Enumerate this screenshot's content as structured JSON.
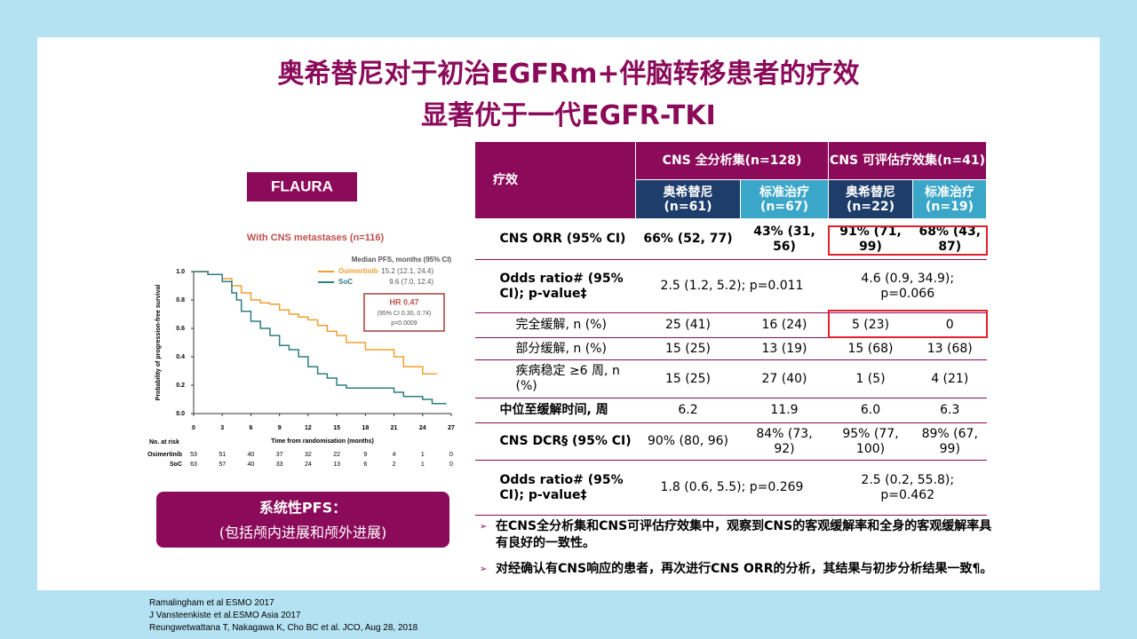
{
  "title": [
    "奥希替尼对于初治EGFRm+伴脑转移患者的疗效",
    "显著优于一代EGFR-TKI"
  ],
  "badge": "FLAURA",
  "chart_data": {
    "type": "line",
    "title": "With CNS metastases (n=116)",
    "legend_title": "Median PFS, months (95% CI)",
    "series": [
      {
        "name": "Osimertinib",
        "median": "15.2 (12.1, 24.4)",
        "color": "#f0a030",
        "x": [
          0,
          1.5,
          3,
          4,
          5,
          6,
          7,
          8,
          9,
          10,
          11,
          12,
          13,
          14,
          15,
          16,
          18,
          20,
          21,
          22,
          24,
          25.5
        ],
        "values": [
          1,
          0.98,
          0.95,
          0.9,
          0.85,
          0.8,
          0.78,
          0.77,
          0.73,
          0.7,
          0.68,
          0.66,
          0.62,
          0.58,
          0.55,
          0.5,
          0.45,
          0.45,
          0.4,
          0.33,
          0.28,
          0.28
        ]
      },
      {
        "name": "SoC",
        "median": "9.6 (7.0, 12.4)",
        "color": "#2e7d80",
        "x": [
          0,
          1.5,
          3,
          4,
          4.5,
          5,
          6,
          7,
          8,
          9,
          10,
          11,
          12,
          13,
          14,
          15,
          16,
          18,
          21,
          22,
          24,
          25,
          26.5
        ],
        "values": [
          1,
          0.98,
          0.93,
          0.85,
          0.8,
          0.72,
          0.65,
          0.6,
          0.55,
          0.48,
          0.45,
          0.4,
          0.33,
          0.28,
          0.25,
          0.2,
          0.18,
          0.18,
          0.15,
          0.12,
          0.1,
          0.07,
          0.07
        ]
      }
    ],
    "annotation": [
      "HR 0.47",
      "(95% CI 0.30, 0.74)",
      "p=0.0009"
    ],
    "xlabel": "Time from randomisation (months)",
    "ylabel": "Probability of progression-free survival",
    "xlim": [
      0,
      27
    ],
    "xticks": [
      0,
      3,
      6,
      9,
      12,
      15,
      18,
      21,
      24,
      27
    ],
    "ylim": [
      0,
      1
    ],
    "yticks": [
      {
        "value": 0,
        "label": "0.0"
      },
      {
        "value": 0.2,
        "label": "0.2"
      },
      {
        "value": 0.4,
        "label": "0.4"
      },
      {
        "value": 0.6,
        "label": "0.6"
      },
      {
        "value": 0.8,
        "label": "0.8"
      },
      {
        "value": 1,
        "label": "1.0"
      }
    ],
    "risk_title": "No. at risk",
    "risk": [
      {
        "name": "Osimertinib",
        "values": [
          53,
          51,
          40,
          37,
          32,
          22,
          9,
          4,
          1,
          0
        ]
      },
      {
        "name": "SoC",
        "values": [
          63,
          57,
          40,
          33,
          24,
          13,
          6,
          2,
          1,
          0
        ]
      }
    ]
  },
  "pfs_box": [
    "系统性PFS：",
    "(包括颅内进展和颅外进展)"
  ],
  "table": {
    "corner": "疗效",
    "groups": [
      "CNS 全分析集(n=128)",
      "CNS 可评估疗效集(n=41)"
    ],
    "arms": [
      "奥希替尼(n=61)",
      "标准治疗(n=67)",
      "奥希替尼(n=22)",
      "标准治疗(n=19)"
    ],
    "rows": [
      [
        "CNS ORR (95% CI)",
        "66% (52, 77)",
        "43% (31, 56)",
        "91% (71, 99)",
        "68% (43, 87)"
      ],
      [
        "Odds ratio# (95% CI); p-value‡",
        "2.5 (1.2, 5.2); p=0.011",
        "4.6 (0.9, 34.9); p=0.066"
      ],
      [
        "完全缓解, n (%)",
        "25 (41)",
        "16 (24)",
        "5 (23)",
        "0"
      ],
      [
        "部分缓解, n (%)",
        "15 (25)",
        "13 (19)",
        "15 (68)",
        "13 (68)"
      ],
      [
        "疾病稳定 ≥6 周, n (%)",
        "15 (25)",
        "27 (40)",
        "1 (5)",
        "4 (21)"
      ],
      [
        "中位至缓解时间, 周",
        "6.2",
        "11.9",
        "6.0",
        "6.3"
      ],
      [
        "CNS DCR§ (95% CI)",
        "90% (80, 96)",
        "84% (73, 92)",
        "95% (77, 100)",
        "89% (67, 99)"
      ],
      [
        "Odds ratio# (95% CI); p-value‡",
        "1.8 (0.6, 5.5); p=0.269",
        "2.5 (0.2, 55.8); p=0.462"
      ]
    ]
  },
  "bullets": [
    "在CNS全分析集和CNS可评估疗效集中，观察到CNS的客观缓解率和全身的客观缓解率具有良好的一致性。",
    "对经确认有CNS响应的患者，再次进行CNS ORR的分析，其结果与初步分析结果一致¶。"
  ],
  "references": [
    "Ramalingham et al ESMO 2017",
    "J Vansteenkiste et al.ESMO Asia 2017",
    "Reungwetwattana T, Nakagawa K, Cho BC et al. JCO, Aug 28, 2018"
  ]
}
